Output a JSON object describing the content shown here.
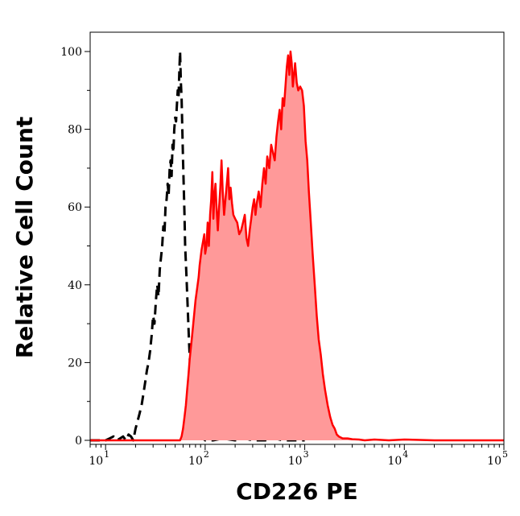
{
  "chart_data": {
    "type": "area",
    "title": "",
    "xlabel": "CD226 PE",
    "ylabel": "Relative Cell Count",
    "x_scale": "log",
    "xlim": [
      7,
      100000
    ],
    "ylim": [
      0,
      105
    ],
    "grid": false,
    "legend": "none",
    "x_ticks": [
      {
        "base": "10",
        "exp": "1",
        "value": 10
      },
      {
        "base": "10",
        "exp": "2",
        "value": 100
      },
      {
        "base": "10",
        "exp": "3",
        "value": 1000
      },
      {
        "base": "10",
        "exp": "4",
        "value": 10000
      },
      {
        "base": "10",
        "exp": "5",
        "value": 100000
      }
    ],
    "y_ticks": [
      {
        "label": "0",
        "value": 0
      },
      {
        "label": "20",
        "value": 20
      },
      {
        "label": "40",
        "value": 40
      },
      {
        "label": "60",
        "value": 60
      },
      {
        "label": "80",
        "value": 80
      },
      {
        "label": "100",
        "value": 100
      }
    ],
    "series": [
      {
        "style": "dashed",
        "color": "#000000",
        "points": [
          [
            7,
            0
          ],
          [
            10,
            0
          ],
          [
            11,
            0.5
          ],
          [
            12,
            1
          ],
          [
            13,
            0
          ],
          [
            14,
            0.5
          ],
          [
            15,
            1
          ],
          [
            16,
            0
          ],
          [
            17,
            1.5
          ],
          [
            18,
            1
          ],
          [
            19,
            0
          ],
          [
            20,
            3
          ],
          [
            21,
            5
          ],
          [
            22,
            7
          ],
          [
            23,
            9
          ],
          [
            24,
            12
          ],
          [
            25,
            15
          ],
          [
            26,
            18
          ],
          [
            27,
            20
          ],
          [
            28,
            23
          ],
          [
            29,
            27
          ],
          [
            30,
            32
          ],
          [
            31,
            30
          ],
          [
            32,
            36
          ],
          [
            33,
            40
          ],
          [
            34,
            37
          ],
          [
            35,
            44
          ],
          [
            36,
            47
          ],
          [
            37,
            50
          ],
          [
            38,
            55
          ],
          [
            39,
            53
          ],
          [
            40,
            60
          ],
          [
            41,
            62
          ],
          [
            42,
            66
          ],
          [
            43,
            63
          ],
          [
            44,
            70
          ],
          [
            45,
            72
          ],
          [
            46,
            68
          ],
          [
            47,
            76
          ],
          [
            48,
            74
          ],
          [
            49,
            80
          ],
          [
            50,
            83
          ],
          [
            51,
            82
          ],
          [
            52,
            86
          ],
          [
            53,
            90
          ],
          [
            54,
            88
          ],
          [
            55,
            95
          ],
          [
            56,
            100
          ],
          [
            57,
            92
          ],
          [
            58,
            88
          ],
          [
            59,
            80
          ],
          [
            60,
            72
          ],
          [
            61,
            65
          ],
          [
            62,
            58
          ],
          [
            63,
            50
          ],
          [
            65,
            42
          ],
          [
            67,
            33
          ],
          [
            69,
            25
          ],
          [
            71,
            18
          ],
          [
            73,
            12
          ],
          [
            76,
            8
          ],
          [
            79,
            5
          ],
          [
            82,
            3
          ],
          [
            86,
            2
          ],
          [
            90,
            1
          ],
          [
            95,
            0.5
          ],
          [
            100,
            0
          ],
          [
            120,
            0
          ],
          [
            150,
            0.5
          ],
          [
            200,
            0
          ],
          [
            250,
            0.5
          ],
          [
            300,
            0
          ],
          [
            400,
            0
          ],
          [
            500,
            0.5
          ],
          [
            600,
            0
          ],
          [
            800,
            0
          ],
          [
            1000,
            0
          ]
        ]
      },
      {
        "style": "filled",
        "color": "#ff0000",
        "fill": "#ff9999",
        "points": [
          [
            7,
            0
          ],
          [
            50,
            0
          ],
          [
            56,
            0
          ],
          [
            58,
            1
          ],
          [
            60,
            3
          ],
          [
            62,
            6
          ],
          [
            64,
            9
          ],
          [
            66,
            13
          ],
          [
            68,
            17
          ],
          [
            70,
            21
          ],
          [
            72,
            24
          ],
          [
            74,
            27
          ],
          [
            76,
            30
          ],
          [
            78,
            33
          ],
          [
            80,
            36
          ],
          [
            82,
            38
          ],
          [
            84,
            40
          ],
          [
            86,
            42
          ],
          [
            88,
            45
          ],
          [
            90,
            47
          ],
          [
            92,
            49
          ],
          [
            95,
            51
          ],
          [
            98,
            53
          ],
          [
            100,
            48
          ],
          [
            103,
            50
          ],
          [
            106,
            56
          ],
          [
            109,
            50
          ],
          [
            112,
            58
          ],
          [
            115,
            62
          ],
          [
            118,
            69
          ],
          [
            121,
            57
          ],
          [
            124,
            63
          ],
          [
            127,
            66
          ],
          [
            130,
            60
          ],
          [
            134,
            54
          ],
          [
            138,
            60
          ],
          [
            142,
            65
          ],
          [
            146,
            72
          ],
          [
            150,
            64
          ],
          [
            155,
            58
          ],
          [
            160,
            62
          ],
          [
            165,
            66
          ],
          [
            170,
            70
          ],
          [
            175,
            62
          ],
          [
            180,
            65
          ],
          [
            186,
            61
          ],
          [
            192,
            58
          ],
          [
            200,
            57
          ],
          [
            210,
            56
          ],
          [
            220,
            53
          ],
          [
            230,
            54
          ],
          [
            240,
            56
          ],
          [
            250,
            58
          ],
          [
            260,
            52
          ],
          [
            270,
            50
          ],
          [
            280,
            54
          ],
          [
            290,
            57
          ],
          [
            300,
            60
          ],
          [
            310,
            62
          ],
          [
            320,
            58
          ],
          [
            330,
            61
          ],
          [
            345,
            64
          ],
          [
            360,
            60
          ],
          [
            375,
            66
          ],
          [
            390,
            70
          ],
          [
            405,
            66
          ],
          [
            420,
            73
          ],
          [
            440,
            70
          ],
          [
            460,
            76
          ],
          [
            480,
            74
          ],
          [
            500,
            72
          ],
          [
            520,
            78
          ],
          [
            540,
            82
          ],
          [
            560,
            85
          ],
          [
            580,
            80
          ],
          [
            600,
            88
          ],
          [
            620,
            86
          ],
          [
            640,
            91
          ],
          [
            660,
            96
          ],
          [
            680,
            99
          ],
          [
            700,
            94
          ],
          [
            720,
            100
          ],
          [
            740,
            97
          ],
          [
            760,
            91
          ],
          [
            780,
            94
          ],
          [
            800,
            97
          ],
          [
            830,
            92
          ],
          [
            860,
            90
          ],
          [
            900,
            91
          ],
          [
            940,
            90
          ],
          [
            980,
            86
          ],
          [
            1020,
            77
          ],
          [
            1060,
            72
          ],
          [
            1100,
            64
          ],
          [
            1150,
            56
          ],
          [
            1200,
            48
          ],
          [
            1260,
            40
          ],
          [
            1320,
            32
          ],
          [
            1380,
            26
          ],
          [
            1450,
            22
          ],
          [
            1520,
            17
          ],
          [
            1600,
            13
          ],
          [
            1700,
            9
          ],
          [
            1800,
            6
          ],
          [
            1900,
            4
          ],
          [
            2000,
            3
          ],
          [
            2100,
            1.5
          ],
          [
            2200,
            1
          ],
          [
            2400,
            0.5
          ],
          [
            2700,
            0.5
          ],
          [
            3000,
            0.3
          ],
          [
            3500,
            0.2
          ],
          [
            4000,
            0
          ],
          [
            5000,
            0.2
          ],
          [
            7000,
            0
          ],
          [
            10000,
            0.2
          ],
          [
            20000,
            0
          ],
          [
            50000,
            0
          ],
          [
            100000,
            0
          ]
        ]
      }
    ]
  }
}
